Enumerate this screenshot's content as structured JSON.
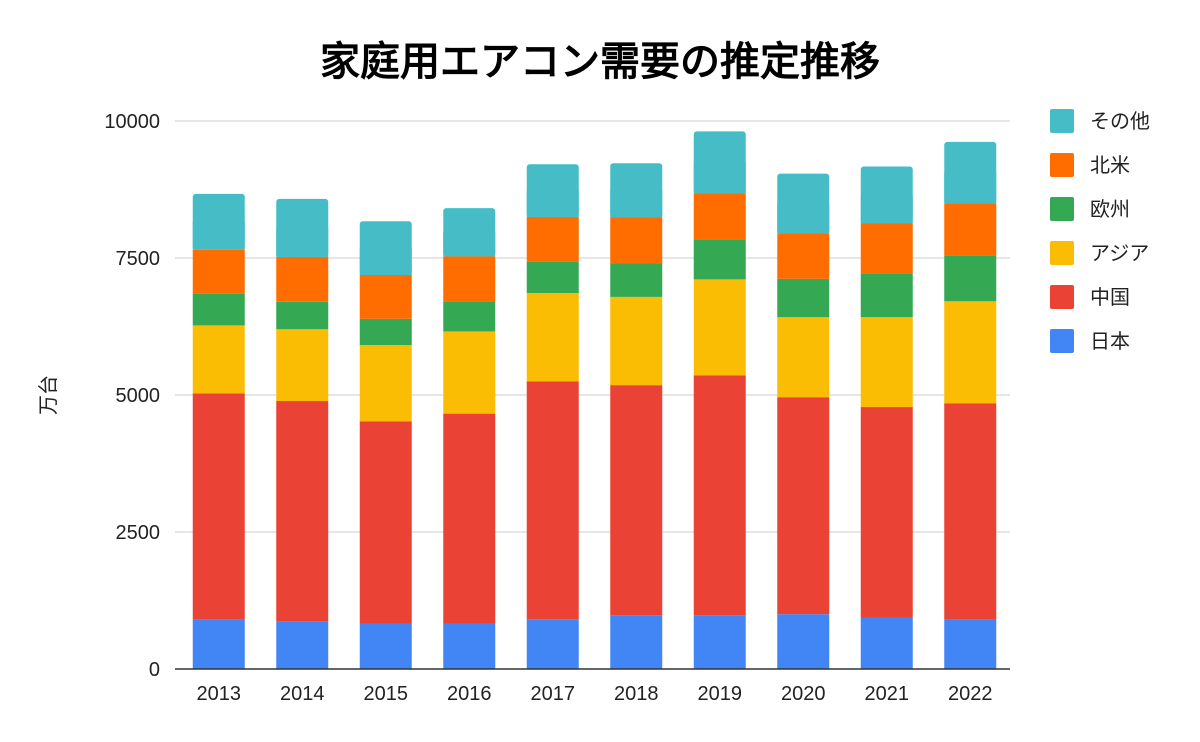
{
  "chart_data": {
    "type": "bar",
    "stacked": true,
    "title": "家庭用エアコン需要の推定推移",
    "xlabel": "",
    "ylabel": "万台",
    "ylim": [
      0,
      10000
    ],
    "yticks": [
      "0",
      "2500",
      "5000",
      "7500",
      "10000"
    ],
    "categories": [
      "2013",
      "2014",
      "2015",
      "2016",
      "2017",
      "2018",
      "2019",
      "2020",
      "2021",
      "2022"
    ],
    "legend_position": "top-right",
    "series": [
      {
        "name": "日本",
        "color": "#4285F4",
        "values": [
          900,
          870,
          830,
          830,
          910,
          980,
          980,
          1000,
          940,
          900
        ]
      },
      {
        "name": "中国",
        "color": "#EA4335",
        "values": [
          4130,
          4020,
          3690,
          3830,
          4340,
          4200,
          4380,
          3960,
          3840,
          3950
        ]
      },
      {
        "name": "アジア",
        "color": "#FBBC04",
        "values": [
          1240,
          1310,
          1390,
          1500,
          1610,
          1610,
          1750,
          1460,
          1640,
          1860
        ]
      },
      {
        "name": "欧州",
        "color": "#34A853",
        "values": [
          580,
          500,
          480,
          550,
          580,
          610,
          730,
          700,
          800,
          840
        ]
      },
      {
        "name": "北米",
        "color": "#FF6D01",
        "values": [
          800,
          820,
          800,
          820,
          810,
          840,
          840,
          830,
          910,
          950
        ]
      },
      {
        "name": "その他",
        "color": "#46BDC6",
        "values": [
          1020,
          1060,
          980,
          880,
          960,
          990,
          1130,
          1090,
          1040,
          1120
        ]
      }
    ]
  }
}
